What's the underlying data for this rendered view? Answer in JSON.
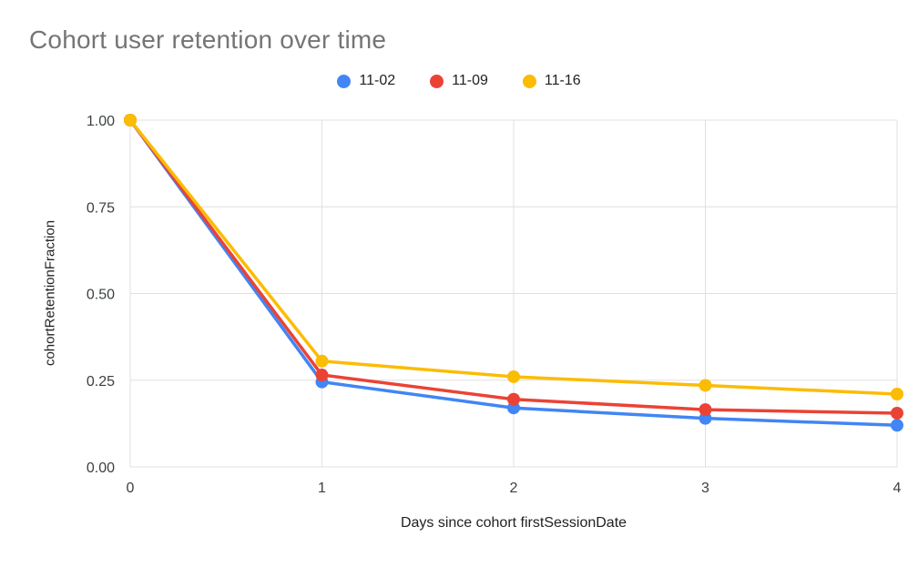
{
  "chart": {
    "title": "Cohort user retention over time",
    "xlabel": "Days since cohort firstSessionDate",
    "ylabel": "cohortRetentionFraction"
  },
  "chart_data": {
    "type": "line",
    "title": "Cohort user retention over time",
    "xlabel": "Days since cohort firstSessionDate",
    "ylabel": "cohortRetentionFraction",
    "x": [
      0,
      1,
      2,
      3,
      4
    ],
    "series": [
      {
        "name": "11-02",
        "color": "#4285F4",
        "values": [
          1.0,
          0.245,
          0.17,
          0.14,
          0.12
        ]
      },
      {
        "name": "11-09",
        "color": "#EA4335",
        "values": [
          1.0,
          0.265,
          0.195,
          0.165,
          0.155
        ]
      },
      {
        "name": "11-16",
        "color": "#FBBC04",
        "values": [
          1.0,
          0.305,
          0.26,
          0.235,
          0.21
        ]
      }
    ],
    "ylim": [
      0.0,
      1.0
    ],
    "yticks": [
      0.0,
      0.25,
      0.5,
      0.75,
      1.0
    ],
    "ytick_labels": [
      "0.00",
      "0.25",
      "0.50",
      "0.75",
      "1.00"
    ],
    "xtick_labels": [
      "0",
      "1",
      "2",
      "3",
      "4"
    ],
    "grid": true,
    "gridline_color": "#e0e0e0",
    "legend_position": "top"
  }
}
